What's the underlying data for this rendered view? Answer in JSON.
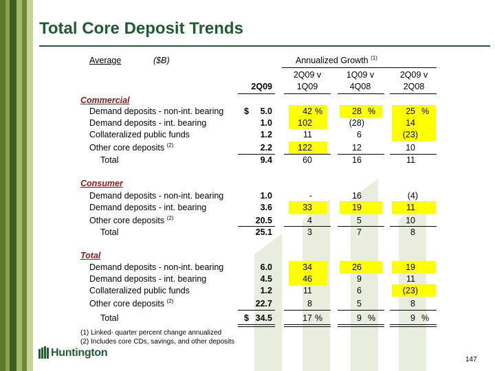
{
  "title": "Total Core Deposit Trends",
  "header": {
    "average": "Average",
    "units": "($B)",
    "growth": "Annualized Growth",
    "growth_note": "(1)",
    "col1": "2Q09",
    "col2_top": "2Q09 v",
    "col2_bot": "1Q09",
    "col3_top": "1Q09 v",
    "col3_bot": "4Q08",
    "col4_top": "2Q09 v",
    "col4_bot": "2Q08"
  },
  "sections": {
    "commercial": {
      "label": "Commercial",
      "rows": [
        {
          "label": "Demand deposits - non-int. bearing",
          "dollar": "$",
          "v": "5.0",
          "g1": "42",
          "g1p": "%",
          "g2": "28",
          "g2p": "%",
          "g3": "25",
          "g3p": "%"
        },
        {
          "label": "Demand deposits - int. bearing",
          "v": "1.0",
          "g1": "102",
          "g2": "(28)",
          "g3": "14"
        },
        {
          "label": "Collateralized public funds",
          "v": "1.2",
          "g1": "11",
          "g2": "6",
          "g3": "(23)"
        },
        {
          "label": "Other core deposits",
          "note": "(2)",
          "v": "2.2",
          "g1": "122",
          "g2": "12",
          "g3": "10"
        },
        {
          "label": "Total",
          "v": "9.4",
          "g1": "60",
          "g2": "16",
          "g3": "11"
        }
      ]
    },
    "consumer": {
      "label": "Consumer",
      "rows": [
        {
          "label": "Demand deposits - non-int. bearing",
          "v": "1.0",
          "g1": "-",
          "g2": "16",
          "g3": "(4)"
        },
        {
          "label": "Demand deposits - int. bearing",
          "v": "3.6",
          "g1": "33",
          "g2": "19",
          "g3": "11"
        },
        {
          "label": "Other core deposits",
          "note": "(2)",
          "v": "20.5",
          "g1": "4",
          "g2": "5",
          "g3": "10"
        },
        {
          "label": "Total",
          "v": "25.1",
          "g1": "3",
          "g2": "7",
          "g3": "8"
        }
      ]
    },
    "total": {
      "label": "Total",
      "rows": [
        {
          "label": "Demand deposits - non-int. bearing",
          "v": "6.0",
          "g1": "34",
          "g2": "26",
          "g3": "19"
        },
        {
          "label": "Demand deposits - int. bearing",
          "v": "4.5",
          "g1": "46",
          "g2": "9",
          "g3": "11"
        },
        {
          "label": "Collateralized public funds",
          "v": "1.2",
          "g1": "11",
          "g2": "6",
          "g3": "(23)"
        },
        {
          "label": "Other core deposits",
          "note": "(2)",
          "v": "22.7",
          "g1": "8",
          "g2": "5",
          "g3": "8"
        },
        {
          "label": "Total",
          "dollar": "$",
          "v": "34.5",
          "g1": "17",
          "g1p": "%",
          "g2": "9",
          "g2p": "%",
          "g3": "9",
          "g3p": "%"
        }
      ]
    }
  },
  "footnotes": [
    "(1) Linked- quarter percent change annualized",
    "(2) Includes core CDs, savings, and other deposits"
  ],
  "logo_text": "Huntington",
  "page_number": "147",
  "colors": {
    "green": "#1f5c32",
    "highlight": "#ffff00",
    "section": "#8b1a1a"
  }
}
